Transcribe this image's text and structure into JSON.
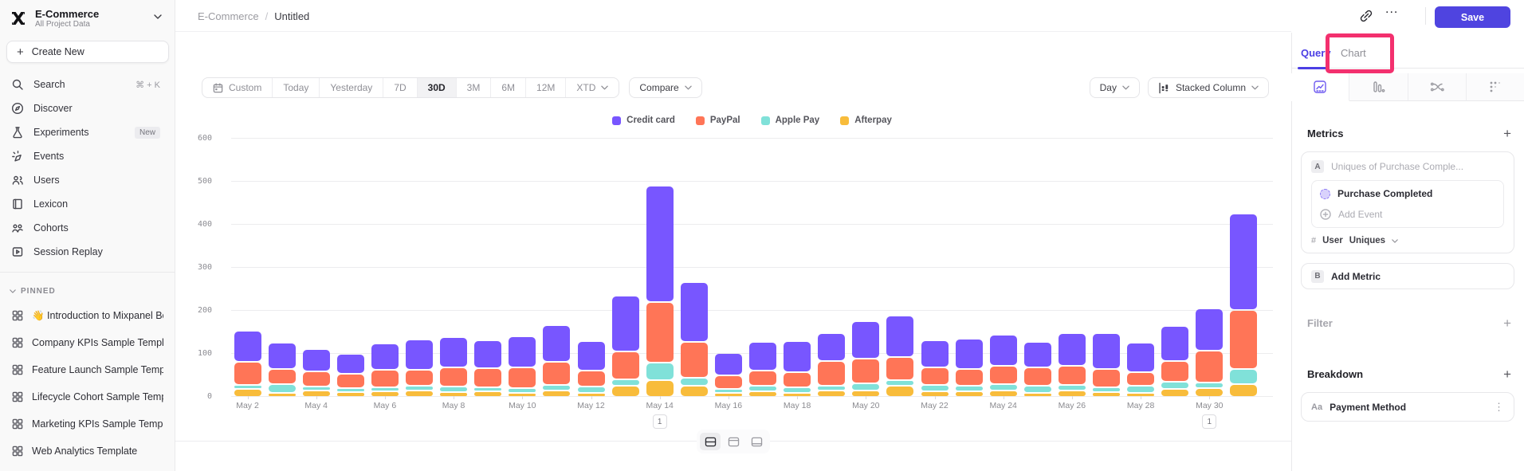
{
  "sidebar": {
    "project": {
      "name": "E-Commerce",
      "subtitle": "All Project Data"
    },
    "create_new_label": "Create New",
    "nav": [
      {
        "icon": "search",
        "label": "Search",
        "shortcut": "⌘ + K"
      },
      {
        "icon": "discover",
        "label": "Discover"
      },
      {
        "icon": "experiments",
        "label": "Experiments",
        "badge": "New"
      },
      {
        "icon": "events",
        "label": "Events"
      },
      {
        "icon": "users",
        "label": "Users"
      },
      {
        "icon": "lexicon",
        "label": "Lexicon"
      },
      {
        "icon": "cohorts",
        "label": "Cohorts"
      },
      {
        "icon": "replay",
        "label": "Session Replay"
      }
    ],
    "pinned_label": "PINNED",
    "pinned": [
      "👋 Introduction to Mixpanel Bo",
      "Company KPIs Sample Templat",
      "Feature Launch Sample Templa",
      "Lifecycle Cohort Sample Temp",
      "Marketing KPIs Sample Templat",
      "Web Analytics Template"
    ]
  },
  "header": {
    "breadcrumb_root": "E-Commerce",
    "breadcrumb_sep": "/",
    "breadcrumb_leaf": "Untitled",
    "more_label": "...",
    "save_label": "Save"
  },
  "toolbar": {
    "ranges": [
      {
        "label": "Custom",
        "icon": "calendar"
      },
      {
        "label": "Today"
      },
      {
        "label": "Yesterday"
      },
      {
        "label": "7D"
      },
      {
        "label": "30D",
        "active": true
      },
      {
        "label": "3M"
      },
      {
        "label": "6M"
      },
      {
        "label": "12M"
      },
      {
        "label": "XTD",
        "chevron": true
      }
    ],
    "compare_label": "Compare",
    "granularity": "Day",
    "chart_type": "Stacked Column"
  },
  "query_panel": {
    "tab_query": "Query",
    "tab_chart": "Chart",
    "active_tab": "Query",
    "metrics_label": "Metrics",
    "metric_a": {
      "badge": "A",
      "placeholder": "Uniques of Purchase Comple...",
      "event": "Purchase Completed",
      "add_event_label": "Add Event",
      "measure_prefix": "#",
      "measure_entity": "User",
      "aggregation": "Uniques"
    },
    "metric_b": {
      "badge": "B",
      "label": "Add Metric"
    },
    "filter_label": "Filter",
    "breakdown_label": "Breakdown",
    "breakdown_item": {
      "badge": "Aa",
      "label": "Payment Method"
    }
  },
  "annotation_overlay": {
    "target": "Chart",
    "color": "#F3306E"
  },
  "chart_data": {
    "type": "bar",
    "stacked": true,
    "title": "",
    "xlabel": "",
    "ylabel": "",
    "ylim": [
      0,
      600
    ],
    "yticks": [
      0,
      100,
      200,
      300,
      400,
      500,
      600
    ],
    "grid": true,
    "legend_position": "top",
    "categories": [
      "May 2",
      "May 3",
      "May 4",
      "May 5",
      "May 6",
      "May 7",
      "May 8",
      "May 9",
      "May 10",
      "May 11",
      "May 12",
      "May 13",
      "May 14",
      "May 15",
      "May 16",
      "May 17",
      "May 18",
      "May 19",
      "May 20",
      "May 21",
      "May 22",
      "May 23",
      "May 24",
      "May 25",
      "May 26",
      "May 27",
      "May 28",
      "May 29",
      "May 30",
      "May 31"
    ],
    "x_labeled_every": 2,
    "series": [
      {
        "name": "Credit card",
        "color": "#7856FF",
        "values": [
          72,
          62,
          52,
          45,
          61,
          70,
          70,
          65,
          72,
          85,
          69,
          130,
          269,
          138,
          52,
          66,
          71,
          65,
          88,
          96,
          62,
          71,
          71,
          60,
          75,
          84,
          68,
          81,
          99,
          225
        ]
      },
      {
        "name": "PayPal",
        "color": "#FF7557",
        "values": [
          54,
          35,
          36,
          33,
          40,
          38,
          45,
          43,
          47,
          55,
          37,
          66,
          142,
          83,
          30,
          36,
          35,
          57,
          56,
          54,
          41,
          38,
          43,
          42,
          45,
          41,
          32,
          48,
          73,
          137
        ]
      },
      {
        "name": "Apple Pay",
        "color": "#80E1D9",
        "values": [
          10,
          20,
          5,
          6,
          8,
          10,
          12,
          10,
          12,
          12,
          15,
          15,
          40,
          19,
          9,
          13,
          13,
          11,
          17,
          13,
          16,
          13,
          16,
          16,
          14,
          12,
          16,
          17,
          13,
          34
        ]
      },
      {
        "name": "Afterpay",
        "color": "#F8BC3B",
        "values": [
          18,
          8,
          14,
          12,
          13,
          15,
          12,
          13,
          8,
          15,
          8,
          25,
          39,
          26,
          10,
          13,
          10,
          15,
          15,
          25,
          12,
          13,
          14,
          10,
          14,
          11,
          10,
          19,
          21,
          30
        ]
      }
    ],
    "annotations": [
      {
        "x": "May 14",
        "label": "1"
      },
      {
        "x": "May 30",
        "label": "1"
      }
    ]
  }
}
